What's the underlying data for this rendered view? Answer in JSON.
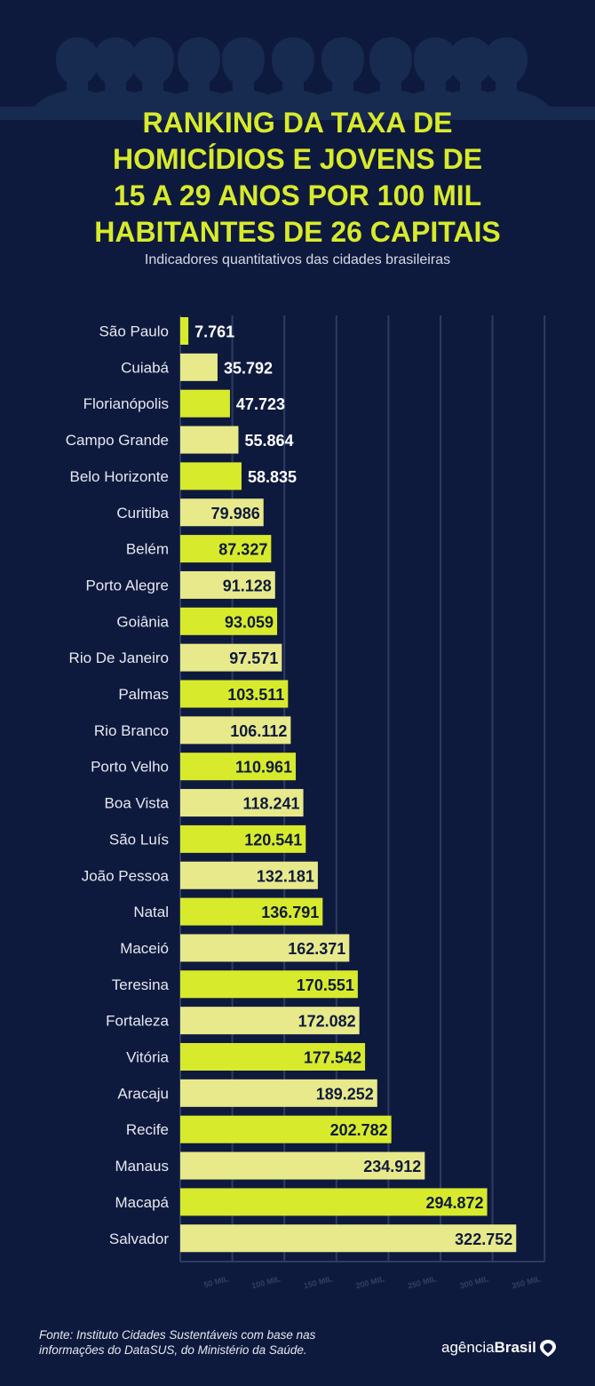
{
  "header": {
    "title_lines": [
      "RANKING DA TAXA DE",
      "HOMICÍDIOS E JOVENS DE",
      "15 A 29 ANOS POR 100 MIL",
      "HABITANTES DE 26 CAPITAIS"
    ],
    "subtitle": "Indicadores quantitativos das cidades brasileiras"
  },
  "footer": {
    "source_lines": [
      "Fonte: Instituto Cidades Sustentáveis com base nas",
      "informações do DataSUS, do Ministério da Saúde."
    ],
    "logo_light": "agência",
    "logo_bold": "Brasil"
  },
  "colors": {
    "background": "#0e1a3d",
    "accent": "#d8ea2c",
    "bar_alt": "#e8e98a",
    "grid": "#2c3c62"
  },
  "chart_data": {
    "type": "bar",
    "orientation": "horizontal",
    "title": "RANKING DA TAXA DE HOMICÍDIOS E JOVENS DE 15 A 29 ANOS POR 100 MIL HABITANTES DE 26 CAPITAIS",
    "subtitle": "Indicadores quantitativos das cidades brasileiras",
    "categories": [
      "São Paulo",
      "Cuiabá",
      "Florianópolis",
      "Campo Grande",
      "Belo Horizonte",
      "Curitiba",
      "Belém",
      "Porto Alegre",
      "Goiânia",
      "Rio De Janeiro",
      "Palmas",
      "Rio Branco",
      "Porto Velho",
      "Boa Vista",
      "São Luís",
      "João Pessoa",
      "Natal",
      "Maceió",
      "Teresina",
      "Fortaleza",
      "Vitória",
      "Aracaju",
      "Recife",
      "Manaus",
      "Macapá",
      "Salvador"
    ],
    "values": [
      7.761,
      35.792,
      47.723,
      55.864,
      58.835,
      79.986,
      87.327,
      91.128,
      93.059,
      97.571,
      103.511,
      106.112,
      110.961,
      118.241,
      120.541,
      132.181,
      136.791,
      162.371,
      170.551,
      172.082,
      177.542,
      189.252,
      202.782,
      234.912,
      294.872,
      322.752
    ],
    "value_labels": [
      "7.761",
      "35.792",
      "47.723",
      "55.864",
      "58.835",
      "79.986",
      "87.327",
      "91.128",
      "93.059",
      "97.571",
      "103.511",
      "106.112",
      "110.961",
      "118.241",
      "120.541",
      "132.181",
      "136.791",
      "162.371",
      "170.551",
      "172.082",
      "177.542",
      "189.252",
      "202.782",
      "234.912",
      "294.872",
      "322.752"
    ],
    "xticks": [
      50,
      100,
      150,
      200,
      250,
      300,
      350
    ],
    "xtick_labels": [
      "50 MIL",
      "100 MIL",
      "150 MIL",
      "200 MIL",
      "250 MIL",
      "300 MIL",
      "350 MIL"
    ],
    "xlim": [
      0,
      350
    ],
    "grid": true,
    "xlabel": "",
    "ylabel": ""
  }
}
